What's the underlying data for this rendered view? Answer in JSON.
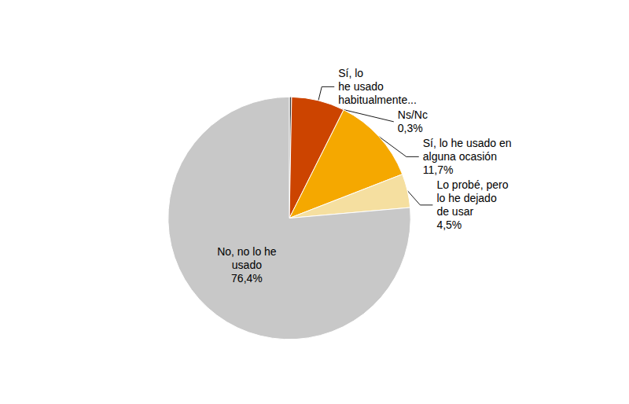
{
  "chart_data": {
    "type": "pie",
    "values": [
      0.3,
      7.1,
      11.7,
      4.5,
      76.4
    ],
    "value_labels": [
      "Ns/Nc\n0,3%",
      "Sí, lo\nhe usado\nhabitualmente...",
      "Sí, lo he usado en\nalguna ocasión\n11,7%",
      "Lo probé, pero\nlo he dejado\nde usar\n4,5%",
      "No, no lo he\nusado\n76,4%"
    ],
    "colors": [
      "#3a3a3a",
      "#cc4400",
      "#f5a800",
      "#f5dfa0",
      "#c8c8c8"
    ]
  }
}
